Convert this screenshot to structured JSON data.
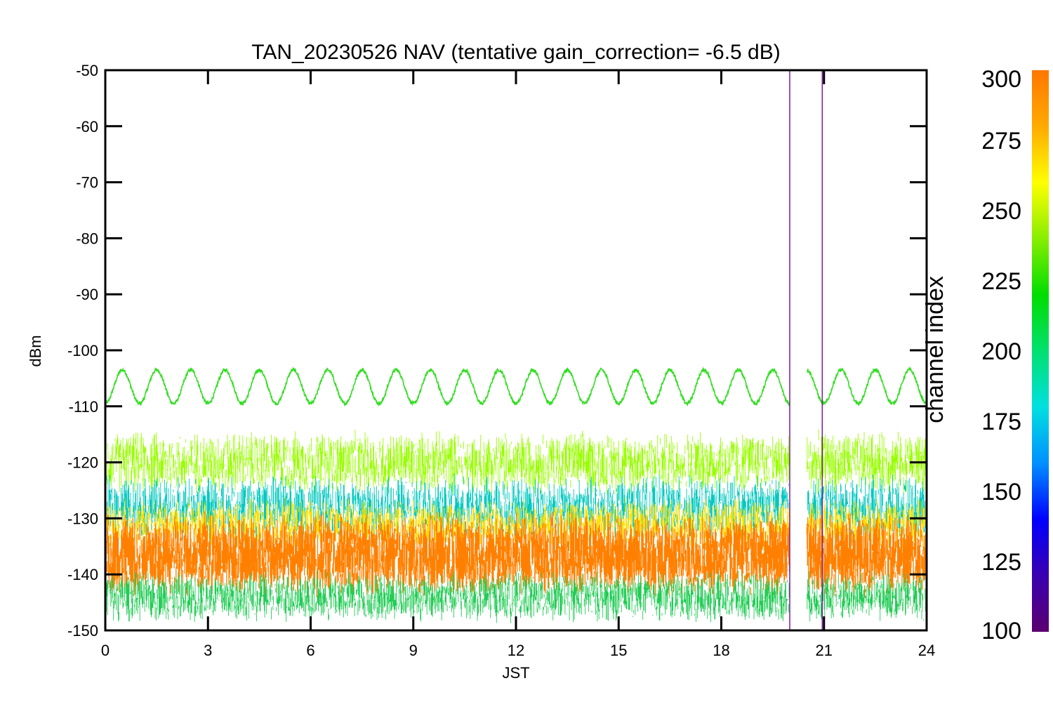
{
  "chart_data": {
    "type": "line",
    "title": "TAN_20230526 NAV (tentative gain_correction= -6.5 dB)",
    "xlabel": "JST",
    "ylabel": "dBm",
    "xlim": [
      0,
      24
    ],
    "ylim": [
      -150,
      -50
    ],
    "x_ticks": [
      "0",
      "3",
      "6",
      "9",
      "12",
      "15",
      "18",
      "21",
      "24"
    ],
    "y_ticks": [
      "-50",
      "-60",
      "-70",
      "-80",
      "-90",
      "-100",
      "-110",
      "-120",
      "-130",
      "-140",
      "-150"
    ],
    "grid": false,
    "colorbar": {
      "label": "channel index",
      "range": [
        100,
        300
      ],
      "ticks": [
        "300",
        "275",
        "250",
        "225",
        "200",
        "175",
        "150",
        "125",
        "100"
      ],
      "colormap": [
        "#5a0070",
        "#3a00b0",
        "#0000ff",
        "#0090ff",
        "#00e0e0",
        "#00e070",
        "#00dd00",
        "#88ee00",
        "#ffff00",
        "#ffaa00",
        "#ff7700"
      ]
    },
    "data_gap": {
      "x": [
        20.0,
        20.5
      ]
    },
    "spike_lines": [
      {
        "x": 20.0,
        "y": [
          -150,
          -50
        ],
        "color": "#7a1aa0"
      },
      {
        "x": 20.95,
        "y": [
          -150,
          -50
        ],
        "color": "#7a1aa0"
      }
    ],
    "series": [
      {
        "channel_range": "upper",
        "color": "#33dd22",
        "pattern": "sinusoid",
        "center": -106.5,
        "amplitude": 3,
        "period_h": 1.0,
        "approx_range": [
          -110,
          -103
        ]
      },
      {
        "channel_range": "upper",
        "color": "#99ff00",
        "pattern": "noise band",
        "approx_range": [
          -125,
          -115
        ]
      },
      {
        "channel_range": "mixed",
        "color": "#00c8c0",
        "pattern": "noise band",
        "approx_range": [
          -133,
          -123
        ]
      },
      {
        "channel_range": "mixed",
        "color": "#ffe000",
        "pattern": "noise band",
        "approx_range": [
          -135,
          -127
        ]
      },
      {
        "channel_range": "high",
        "color": "#ff8000",
        "pattern": "dense noise band",
        "approx_range": [
          -143,
          -130
        ]
      },
      {
        "channel_range": "mixed",
        "color": "#22cc55",
        "pattern": "noise band",
        "approx_range": [
          -148,
          -140
        ]
      }
    ]
  }
}
